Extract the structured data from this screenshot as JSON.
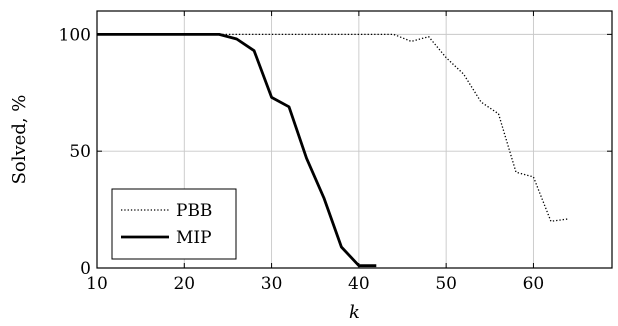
{
  "chart_data": {
    "type": "line",
    "title": "",
    "xlabel": "k",
    "ylabel": "Solved, %",
    "xlim": [
      10,
      69
    ],
    "ylim": [
      0,
      110
    ],
    "xticks": [
      10,
      20,
      30,
      40,
      50,
      60
    ],
    "yticks": [
      0,
      50,
      100
    ],
    "grid": true,
    "legend": "bottom-left",
    "series": [
      {
        "name": "PBB",
        "style": "dotted",
        "color": "#000000",
        "x": [
          10,
          12,
          14,
          16,
          18,
          20,
          22,
          24,
          26,
          28,
          30,
          32,
          34,
          36,
          38,
          40,
          42,
          44,
          46,
          48,
          50,
          52,
          54,
          56,
          58,
          60,
          62,
          64
        ],
        "y": [
          100,
          100,
          100,
          100,
          100,
          100,
          100,
          100,
          100,
          100,
          100,
          100,
          100,
          100,
          100,
          100,
          100,
          100,
          97,
          99,
          90,
          83,
          71,
          66,
          41,
          39,
          20,
          21
        ]
      },
      {
        "name": "MIP",
        "style": "solid",
        "color": "#000000",
        "x": [
          10,
          12,
          14,
          16,
          18,
          20,
          22,
          24,
          26,
          28,
          30,
          32,
          34,
          36,
          38,
          40,
          42
        ],
        "y": [
          100,
          100,
          100,
          100,
          100,
          100,
          100,
          100,
          98,
          93,
          73,
          69,
          47,
          30,
          9,
          1,
          1
        ]
      }
    ]
  }
}
